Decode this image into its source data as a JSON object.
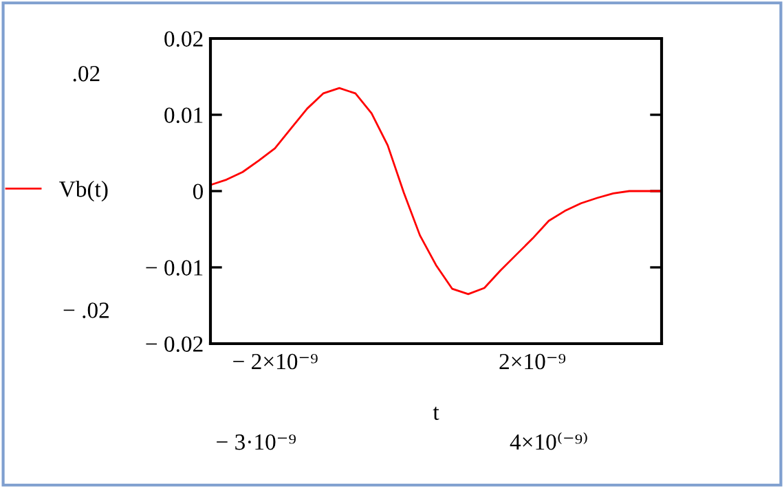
{
  "chart_data": {
    "type": "line",
    "xlabel": "t",
    "legend": "left",
    "categories": [
      null,
      null,
      null,
      null,
      null,
      null,
      null,
      null,
      null,
      null,
      null,
      null,
      null,
      null,
      null,
      null,
      null,
      null,
      null,
      null,
      null,
      null,
      null,
      null,
      null,
      null,
      null,
      null,
      null
    ],
    "series": [
      {
        "name": "Vb(t)",
        "color": "#ff0000",
        "values": [
          0.0008,
          0.0015,
          0.0025,
          0.004,
          0.0056,
          0.0082,
          0.0108,
          0.0128,
          0.0135,
          0.0128,
          0.0102,
          0.006,
          -0.0002,
          -0.0058,
          -0.0097,
          -0.0128,
          -0.0135,
          -0.0127,
          -0.0104,
          -0.0083,
          -0.0062,
          -0.0039,
          -0.0026,
          -0.0016,
          -0.0009,
          -0.0003,
          0.0,
          0.0,
          0.0
        ]
      }
    ],
    "ylim": [
      -0.02,
      0.02
    ],
    "yticks": [
      {
        "value": -0.02,
        "label": "− 0.02"
      },
      {
        "value": -0.01,
        "label": "− 0.01"
      },
      0,
      {
        "value": 0.01,
        "label": "0.01"
      },
      {
        "value": 0.02,
        "label": "0.02"
      }
    ],
    "annotations": [
      ".02",
      "− .02",
      "− 2×10⁻⁹",
      "2×10⁻⁹",
      "− 3·10⁻⁹",
      "4×10⁽⁻⁹⁾"
    ],
    "grid": false,
    "marker": "none",
    "line_style": "solid"
  }
}
